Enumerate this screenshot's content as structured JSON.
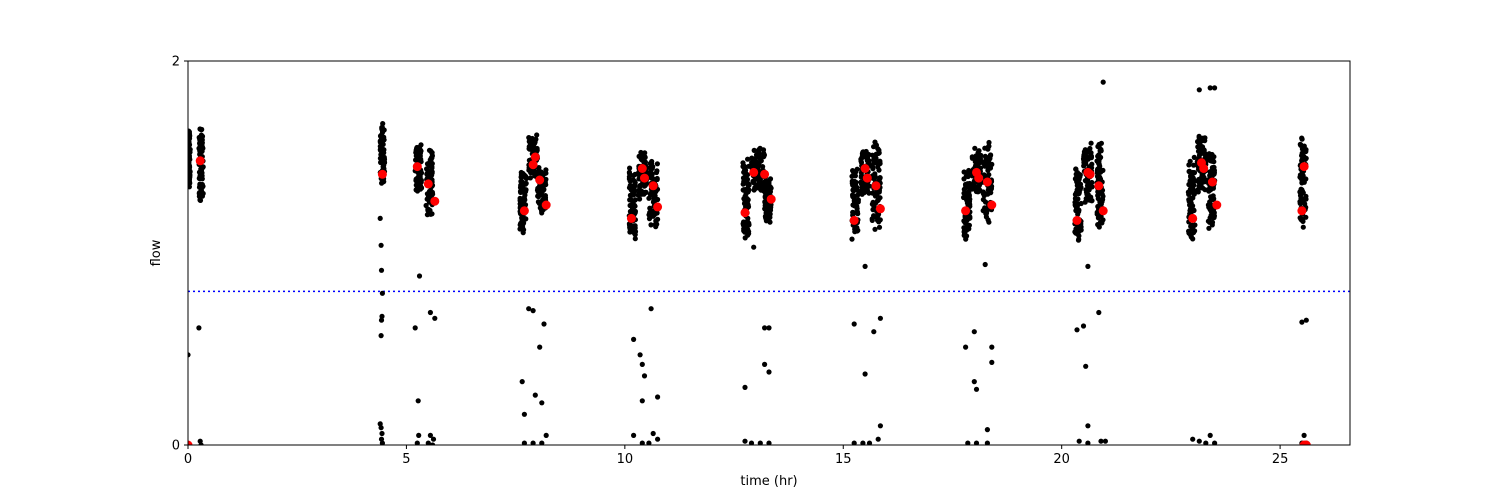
{
  "chart_data": {
    "type": "scatter",
    "title": "",
    "xlabel": "time (hr)",
    "ylabel": "flow",
    "xlim": [
      0,
      26.6
    ],
    "ylim": [
      0,
      2
    ],
    "xticks": [
      0,
      5,
      10,
      15,
      20,
      25
    ],
    "xtick_labels": [
      "0",
      "5",
      "10",
      "15",
      "20",
      "25"
    ],
    "yticks": [
      0,
      2
    ],
    "ytick_labels": [
      "0",
      "2"
    ],
    "grid": false,
    "threshold": {
      "y": 0.8,
      "color": "#0000ff",
      "style": "dotted"
    },
    "series": [
      {
        "marker_color": "#000000",
        "role": "raw",
        "clusters": [
          {
            "x": 0.0,
            "x_end": 0.05,
            "low": 1.33,
            "high": 1.65
          },
          {
            "x": 0.25,
            "x_end": 0.35,
            "low": 1.25,
            "high": 1.67
          },
          {
            "x": 4.4,
            "x_end": 4.5,
            "low": 1.35,
            "high": 1.68
          },
          {
            "x": 5.2,
            "x_end": 5.35,
            "low": 1.3,
            "high": 1.57
          },
          {
            "x": 5.45,
            "x_end": 5.6,
            "low": 1.18,
            "high": 1.55
          },
          {
            "x": 7.6,
            "x_end": 7.75,
            "low": 1.1,
            "high": 1.45
          },
          {
            "x": 7.8,
            "x_end": 8.0,
            "low": 1.38,
            "high": 1.62
          },
          {
            "x": 8.0,
            "x_end": 8.2,
            "low": 1.2,
            "high": 1.45
          },
          {
            "x": 10.1,
            "x_end": 10.25,
            "low": 1.07,
            "high": 1.45
          },
          {
            "x": 10.3,
            "x_end": 10.5,
            "low": 1.28,
            "high": 1.53
          },
          {
            "x": 10.55,
            "x_end": 10.75,
            "low": 1.12,
            "high": 1.5
          },
          {
            "x": 12.7,
            "x_end": 12.85,
            "low": 1.06,
            "high": 1.5
          },
          {
            "x": 12.9,
            "x_end": 13.2,
            "low": 1.3,
            "high": 1.55
          },
          {
            "x": 13.2,
            "x_end": 13.35,
            "low": 1.15,
            "high": 1.4
          },
          {
            "x": 15.2,
            "x_end": 15.35,
            "low": 1.06,
            "high": 1.45
          },
          {
            "x": 15.4,
            "x_end": 15.6,
            "low": 1.28,
            "high": 1.55
          },
          {
            "x": 15.65,
            "x_end": 15.85,
            "low": 1.12,
            "high": 1.58
          },
          {
            "x": 17.75,
            "x_end": 17.9,
            "low": 1.05,
            "high": 1.45
          },
          {
            "x": 17.95,
            "x_end": 18.15,
            "low": 1.3,
            "high": 1.55
          },
          {
            "x": 18.2,
            "x_end": 18.4,
            "low": 1.15,
            "high": 1.58
          },
          {
            "x": 20.3,
            "x_end": 20.45,
            "low": 1.04,
            "high": 1.47
          },
          {
            "x": 20.5,
            "x_end": 20.7,
            "low": 1.25,
            "high": 1.58
          },
          {
            "x": 20.8,
            "x_end": 20.95,
            "low": 1.12,
            "high": 1.58
          },
          {
            "x": 22.9,
            "x_end": 23.05,
            "low": 1.05,
            "high": 1.5
          },
          {
            "x": 23.1,
            "x_end": 23.3,
            "low": 1.3,
            "high": 1.62
          },
          {
            "x": 23.35,
            "x_end": 23.5,
            "low": 1.12,
            "high": 1.55
          },
          {
            "x": 25.45,
            "x_end": 25.6,
            "low": 1.1,
            "high": 1.62
          }
        ],
        "points": [
          {
            "x": 0.0,
            "y": 0.47
          },
          {
            "x": 0.25,
            "y": 0.61
          },
          {
            "x": 0.28,
            "y": 0.02
          },
          {
            "x": 0.0,
            "y": 0.0
          },
          {
            "x": 0.3,
            "y": 0.0
          },
          {
            "x": 4.4,
            "y": 1.18
          },
          {
            "x": 4.42,
            "y": 1.04
          },
          {
            "x": 4.43,
            "y": 0.91
          },
          {
            "x": 4.45,
            "y": 0.79
          },
          {
            "x": 4.44,
            "y": 0.67
          },
          {
            "x": 4.43,
            "y": 0.65
          },
          {
            "x": 4.42,
            "y": 0.57
          },
          {
            "x": 4.4,
            "y": 0.11
          },
          {
            "x": 4.42,
            "y": 0.09
          },
          {
            "x": 4.44,
            "y": 0.06
          },
          {
            "x": 4.43,
            "y": 0.03
          },
          {
            "x": 4.45,
            "y": 0.01
          },
          {
            "x": 5.2,
            "y": 0.61
          },
          {
            "x": 5.3,
            "y": 0.88
          },
          {
            "x": 5.27,
            "y": 0.23
          },
          {
            "x": 5.28,
            "y": 0.05
          },
          {
            "x": 5.25,
            "y": 0.01
          },
          {
            "x": 5.55,
            "y": 0.69
          },
          {
            "x": 5.65,
            "y": 0.66
          },
          {
            "x": 5.55,
            "y": 0.05
          },
          {
            "x": 5.62,
            "y": 0.03
          },
          {
            "x": 5.5,
            "y": 0.01
          },
          {
            "x": 5.6,
            "y": 0.0
          },
          {
            "x": 7.65,
            "y": 0.33
          },
          {
            "x": 7.7,
            "y": 0.16
          },
          {
            "x": 7.8,
            "y": 0.71
          },
          {
            "x": 7.9,
            "y": 0.7
          },
          {
            "x": 7.95,
            "y": 0.26
          },
          {
            "x": 8.05,
            "y": 0.51
          },
          {
            "x": 8.1,
            "y": 0.22
          },
          {
            "x": 8.15,
            "y": 0.63
          },
          {
            "x": 7.7,
            "y": 0.01
          },
          {
            "x": 7.9,
            "y": 0.01
          },
          {
            "x": 8.1,
            "y": 0.01
          },
          {
            "x": 8.2,
            "y": 0.05
          },
          {
            "x": 10.2,
            "y": 0.55
          },
          {
            "x": 10.35,
            "y": 0.47
          },
          {
            "x": 10.4,
            "y": 0.42
          },
          {
            "x": 10.45,
            "y": 0.36
          },
          {
            "x": 10.4,
            "y": 0.23
          },
          {
            "x": 10.6,
            "y": 0.71
          },
          {
            "x": 10.75,
            "y": 0.25
          },
          {
            "x": 10.2,
            "y": 0.05
          },
          {
            "x": 10.4,
            "y": 0.01
          },
          {
            "x": 10.65,
            "y": 0.06
          },
          {
            "x": 10.75,
            "y": 0.03
          },
          {
            "x": 10.55,
            "y": 0.01
          },
          {
            "x": 12.75,
            "y": 0.3
          },
          {
            "x": 12.95,
            "y": 1.03
          },
          {
            "x": 13.2,
            "y": 0.61
          },
          {
            "x": 13.3,
            "y": 0.61
          },
          {
            "x": 13.2,
            "y": 0.42
          },
          {
            "x": 13.3,
            "y": 0.38
          },
          {
            "x": 12.75,
            "y": 0.02
          },
          {
            "x": 12.9,
            "y": 0.01
          },
          {
            "x": 13.1,
            "y": 0.01
          },
          {
            "x": 13.3,
            "y": 0.01
          },
          {
            "x": 15.25,
            "y": 0.63
          },
          {
            "x": 15.5,
            "y": 0.93
          },
          {
            "x": 15.5,
            "y": 0.37
          },
          {
            "x": 15.7,
            "y": 0.59
          },
          {
            "x": 15.85,
            "y": 0.66
          },
          {
            "x": 15.85,
            "y": 0.1
          },
          {
            "x": 15.25,
            "y": 0.01
          },
          {
            "x": 15.45,
            "y": 0.01
          },
          {
            "x": 15.6,
            "y": 0.01
          },
          {
            "x": 15.8,
            "y": 0.03
          },
          {
            "x": 17.8,
            "y": 0.51
          },
          {
            "x": 18.0,
            "y": 0.59
          },
          {
            "x": 18.0,
            "y": 0.33
          },
          {
            "x": 18.05,
            "y": 0.29
          },
          {
            "x": 18.25,
            "y": 0.94
          },
          {
            "x": 18.4,
            "y": 0.51
          },
          {
            "x": 18.4,
            "y": 0.43
          },
          {
            "x": 18.3,
            "y": 0.08
          },
          {
            "x": 17.85,
            "y": 0.01
          },
          {
            "x": 18.05,
            "y": 0.01
          },
          {
            "x": 18.3,
            "y": 0.01
          },
          {
            "x": 20.35,
            "y": 0.6
          },
          {
            "x": 20.5,
            "y": 0.62
          },
          {
            "x": 20.55,
            "y": 0.41
          },
          {
            "x": 20.6,
            "y": 0.93
          },
          {
            "x": 20.6,
            "y": 0.1
          },
          {
            "x": 20.85,
            "y": 0.69
          },
          {
            "x": 20.95,
            "y": 1.89
          },
          {
            "x": 20.4,
            "y": 0.02
          },
          {
            "x": 20.6,
            "y": 0.01
          },
          {
            "x": 20.9,
            "y": 0.02
          },
          {
            "x": 21.0,
            "y": 0.02
          },
          {
            "x": 23.15,
            "y": 1.85
          },
          {
            "x": 23.4,
            "y": 1.86
          },
          {
            "x": 23.5,
            "y": 1.86
          },
          {
            "x": 23.0,
            "y": 0.03
          },
          {
            "x": 23.15,
            "y": 0.02
          },
          {
            "x": 23.4,
            "y": 0.05
          },
          {
            "x": 23.5,
            "y": 0.01
          },
          {
            "x": 23.3,
            "y": 0.01
          },
          {
            "x": 25.5,
            "y": 0.64
          },
          {
            "x": 25.6,
            "y": 0.65
          },
          {
            "x": 25.55,
            "y": 0.05
          },
          {
            "x": 25.6,
            "y": 0.01
          },
          {
            "x": 25.5,
            "y": 0.01
          }
        ]
      },
      {
        "marker_color": "#ff0000",
        "role": "mean",
        "points": [
          {
            "x": 0.0,
            "y": 0.0
          },
          {
            "x": 0.28,
            "y": 1.48
          },
          {
            "x": 4.45,
            "y": 1.41
          },
          {
            "x": 5.25,
            "y": 1.45
          },
          {
            "x": 5.5,
            "y": 1.36
          },
          {
            "x": 5.65,
            "y": 1.27
          },
          {
            "x": 7.7,
            "y": 1.22
          },
          {
            "x": 7.9,
            "y": 1.46
          },
          {
            "x": 7.95,
            "y": 1.5
          },
          {
            "x": 8.05,
            "y": 1.38
          },
          {
            "x": 8.2,
            "y": 1.25
          },
          {
            "x": 10.15,
            "y": 1.18
          },
          {
            "x": 10.4,
            "y": 1.44
          },
          {
            "x": 10.45,
            "y": 1.39
          },
          {
            "x": 10.65,
            "y": 1.35
          },
          {
            "x": 10.75,
            "y": 1.24
          },
          {
            "x": 12.75,
            "y": 1.21
          },
          {
            "x": 12.95,
            "y": 1.42
          },
          {
            "x": 13.2,
            "y": 1.41
          },
          {
            "x": 13.35,
            "y": 1.28
          },
          {
            "x": 15.25,
            "y": 1.17
          },
          {
            "x": 15.5,
            "y": 1.44
          },
          {
            "x": 15.55,
            "y": 1.39
          },
          {
            "x": 15.75,
            "y": 1.35
          },
          {
            "x": 15.85,
            "y": 1.23
          },
          {
            "x": 17.8,
            "y": 1.22
          },
          {
            "x": 18.05,
            "y": 1.42
          },
          {
            "x": 18.1,
            "y": 1.39
          },
          {
            "x": 18.3,
            "y": 1.37
          },
          {
            "x": 18.4,
            "y": 1.25
          },
          {
            "x": 20.35,
            "y": 1.17
          },
          {
            "x": 20.6,
            "y": 1.42
          },
          {
            "x": 20.65,
            "y": 1.41
          },
          {
            "x": 20.85,
            "y": 1.35
          },
          {
            "x": 20.95,
            "y": 1.22
          },
          {
            "x": 23.0,
            "y": 1.18
          },
          {
            "x": 23.2,
            "y": 1.47
          },
          {
            "x": 23.25,
            "y": 1.44
          },
          {
            "x": 23.45,
            "y": 1.37
          },
          {
            "x": 23.55,
            "y": 1.25
          },
          {
            "x": 25.5,
            "y": 1.22
          },
          {
            "x": 25.55,
            "y": 1.45
          },
          {
            "x": 25.55,
            "y": 0.0
          },
          {
            "x": 25.6,
            "y": 0.0
          }
        ]
      }
    ]
  }
}
